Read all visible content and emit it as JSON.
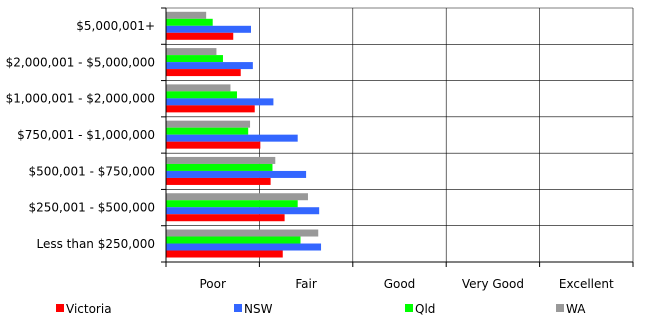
{
  "chart_data": {
    "type": "bar",
    "orientation": "horizontal",
    "categories": [
      "$5,000,001+",
      "$2,000,001 - $5,000,000",
      "$1,000,001 - $2,000,000",
      "$750,001 - $1,000,000",
      "$500,001 - $750,000",
      "$250,001 - $500,000",
      "Less than $250,000"
    ],
    "x_tick_labels": [
      "Poor",
      "Fair",
      "Good",
      "Very Good",
      "Excellent"
    ],
    "xlim": [
      0,
      5
    ],
    "grid": true,
    "legend_position": "bottom",
    "series": [
      {
        "name": "WA",
        "color": "#999999",
        "values": [
          0.43,
          0.54,
          0.69,
          0.9,
          1.17,
          1.52,
          1.63
        ]
      },
      {
        "name": "Qld",
        "color": "#00ff00",
        "values": [
          0.5,
          0.61,
          0.76,
          0.88,
          1.14,
          1.41,
          1.44
        ]
      },
      {
        "name": "NSW",
        "color": "#3366ff",
        "values": [
          0.91,
          0.93,
          1.15,
          1.41,
          1.5,
          1.64,
          1.66
        ]
      },
      {
        "name": "Victoria",
        "color": "#ff0000",
        "values": [
          0.72,
          0.8,
          0.95,
          1.01,
          1.12,
          1.27,
          1.25
        ]
      }
    ],
    "legend_order": [
      "Victoria",
      "NSW",
      "Qld",
      "WA"
    ]
  }
}
